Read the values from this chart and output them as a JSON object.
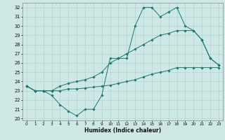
{
  "xlabel": "Humidex (Indice chaleur)",
  "xlim": [
    -0.5,
    23.5
  ],
  "ylim": [
    19.8,
    32.5
  ],
  "yticks": [
    20,
    21,
    22,
    23,
    24,
    25,
    26,
    27,
    28,
    29,
    30,
    31,
    32
  ],
  "xticks": [
    0,
    1,
    2,
    3,
    4,
    5,
    6,
    7,
    8,
    9,
    10,
    11,
    12,
    13,
    14,
    15,
    16,
    17,
    18,
    19,
    20,
    21,
    22,
    23
  ],
  "bg_color": "#cde8e5",
  "line_color": "#1a7a6e",
  "grid_color": "#aacfcc",
  "line1_y": [
    23.5,
    23.0,
    23.0,
    22.5,
    21.5,
    20.8,
    20.3,
    21.0,
    21.0,
    22.5,
    26.5,
    26.5,
    26.5,
    30.0,
    32.0,
    32.0,
    31.0,
    31.5,
    32.0,
    30.0,
    29.5,
    28.5,
    26.5,
    25.8
  ],
  "line2_y": [
    23.5,
    23.0,
    23.0,
    23.0,
    23.0,
    23.2,
    23.2,
    23.3,
    23.4,
    23.5,
    23.6,
    23.8,
    24.0,
    24.2,
    24.5,
    24.8,
    25.0,
    25.2,
    25.5,
    25.5,
    25.5,
    25.5,
    25.5,
    25.5
  ],
  "line3_y": [
    23.5,
    23.0,
    23.0,
    23.0,
    23.5,
    23.8,
    24.0,
    24.2,
    24.5,
    25.0,
    26.0,
    26.5,
    27.0,
    27.5,
    28.0,
    28.5,
    29.0,
    29.2,
    29.5,
    29.5,
    29.5,
    28.5,
    26.5,
    25.8
  ]
}
